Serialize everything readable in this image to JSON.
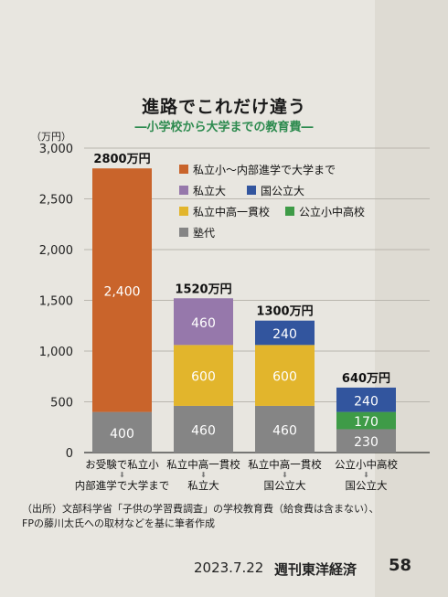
{
  "title": "進路でこれだけ違う",
  "subtitle": "―小学校から大学までの教育費―",
  "source_lines": [
    "（出所）文部科学省「子供の学習費調査」の学校教育費（給食費は含まない）、",
    "FPの藤川太氏への取材などを基に筆者作成"
  ],
  "footer": {
    "date": "2023.7.22",
    "magazine": "週刊東洋経済",
    "page": "58"
  },
  "chart_data": {
    "type": "bar",
    "stacked": true,
    "y_unit_label": "（万円）",
    "ylim": [
      0,
      3000
    ],
    "y_ticks": [
      0,
      500,
      1000,
      1500,
      2000,
      2500,
      3000
    ],
    "y_tick_labels": [
      "0",
      "500",
      "1,000",
      "1,500",
      "2,000",
      "2,500",
      "3,000"
    ],
    "grid": true,
    "legend_position": "top-right",
    "categories": [
      {
        "lines": [
          "お受験で私立小",
          "内部進学で大学まで"
        ]
      },
      {
        "lines": [
          "私立中高一貫校",
          "私立大"
        ]
      },
      {
        "lines": [
          "私立中高一貫校",
          "国公立大"
        ]
      },
      {
        "lines": [
          "公立小中高校",
          "国公立大"
        ]
      }
    ],
    "totals": [
      "2800万円",
      "1520万円",
      "1300万円",
      "640万円"
    ],
    "series": [
      {
        "name": "塾代",
        "color": "#858585",
        "values": [
          400,
          460,
          460,
          230
        ]
      },
      {
        "name": "公立小中高校",
        "color": "#3e9b47",
        "values": [
          0,
          0,
          0,
          170
        ]
      },
      {
        "name": "私立中高一貫校",
        "color": "#e2b52c",
        "values": [
          0,
          600,
          600,
          0
        ]
      },
      {
        "name": "国公立大",
        "color": "#32559e",
        "values": [
          0,
          0,
          240,
          240
        ]
      },
      {
        "name": "私立大",
        "color": "#9678ab",
        "values": [
          0,
          460,
          0,
          0
        ]
      },
      {
        "name": "私立小～内部進学で大学まで",
        "color": "#c9642b",
        "values": [
          2400,
          0,
          0,
          0
        ]
      }
    ],
    "segment_labels": [
      [
        "400",
        "",
        "",
        "",
        "",
        "2,400"
      ],
      [
        "460",
        "",
        "600",
        "",
        "460",
        ""
      ],
      [
        "460",
        "",
        "600",
        "240",
        "",
        ""
      ],
      [
        "230",
        "170",
        "",
        "240",
        "",
        ""
      ]
    ],
    "legend": [
      {
        "series": "私立小～内部進学で大学まで"
      },
      {
        "series": "私立大"
      },
      {
        "series": "国公立大"
      },
      {
        "series": "私立中高一貫校"
      },
      {
        "series": "公立小中高校"
      },
      {
        "series": "塾代"
      }
    ]
  }
}
